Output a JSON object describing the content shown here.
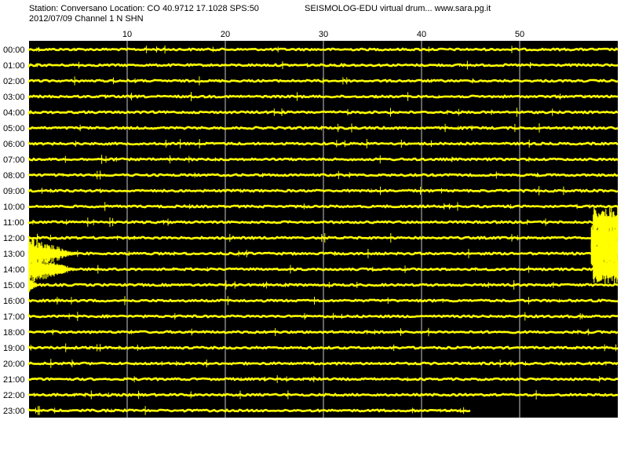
{
  "header": {
    "station_line": "Station: Conversano Location: CO 40.9712 17.1028 SPS:50",
    "brand_line": "SEISMOLOG-EDU virtual drum... www.sara.pg.it",
    "date_line": "2012/07/09  Channel 1 N SHN"
  },
  "colors": {
    "trace": "#ffff00",
    "plot_background": "#000000",
    "page_background": "#ffffff",
    "grid": "#c8c8c8",
    "text": "#000000"
  },
  "chart_data": {
    "type": "line",
    "subtype": "helicorder",
    "title": "",
    "xlabel": "",
    "ylabel": "",
    "xlim": [
      0,
      60
    ],
    "x_ticks": [
      10,
      20,
      30,
      40,
      50
    ],
    "x_tick_labels": [
      "10",
      "20",
      "30",
      "40",
      "50"
    ],
    "grid": "vertical",
    "rows": [
      {
        "label": "00:00",
        "end_minute": 60
      },
      {
        "label": "01:00",
        "end_minute": 60
      },
      {
        "label": "02:00",
        "end_minute": 60
      },
      {
        "label": "03:00",
        "end_minute": 60
      },
      {
        "label": "04:00",
        "end_minute": 60
      },
      {
        "label": "05:00",
        "end_minute": 60
      },
      {
        "label": "06:00",
        "end_minute": 60
      },
      {
        "label": "07:00",
        "end_minute": 60
      },
      {
        "label": "08:00",
        "end_minute": 60
      },
      {
        "label": "09:00",
        "end_minute": 60
      },
      {
        "label": "10:00",
        "end_minute": 60
      },
      {
        "label": "11:00",
        "end_minute": 60
      },
      {
        "label": "12:00",
        "end_minute": 60
      },
      {
        "label": "13:00",
        "end_minute": 60
      },
      {
        "label": "14:00",
        "end_minute": 60
      },
      {
        "label": "15:00",
        "end_minute": 60
      },
      {
        "label": "16:00",
        "end_minute": 60
      },
      {
        "label": "17:00",
        "end_minute": 60
      },
      {
        "label": "18:00",
        "end_minute": 60
      },
      {
        "label": "19:00",
        "end_minute": 60
      },
      {
        "label": "20:00",
        "end_minute": 60
      },
      {
        "label": "21:00",
        "end_minute": 60
      },
      {
        "label": "22:00",
        "end_minute": 60
      },
      {
        "label": "23:00",
        "end_minute": 45
      }
    ],
    "events": [
      {
        "row": "11:00",
        "start_minute": 57.5,
        "end_minute": 60,
        "amplitude": 1.0
      },
      {
        "row": "12:00",
        "start_minute": 57.3,
        "end_minute": 60,
        "amplitude": 1.2
      },
      {
        "row": "13:00",
        "start_minute": 0,
        "end_minute": 5,
        "amplitude": 1.0
      },
      {
        "row": "13:00",
        "start_minute": 57.3,
        "end_minute": 60,
        "amplitude": 1.2
      },
      {
        "row": "14:00",
        "start_minute": 0,
        "end_minute": 5,
        "amplitude": 0.9
      },
      {
        "row": "14:00",
        "start_minute": 57.5,
        "end_minute": 60,
        "amplitude": 1.0
      },
      {
        "row": "15:00",
        "start_minute": 0,
        "end_minute": 1,
        "amplitude": 0.5
      }
    ]
  }
}
